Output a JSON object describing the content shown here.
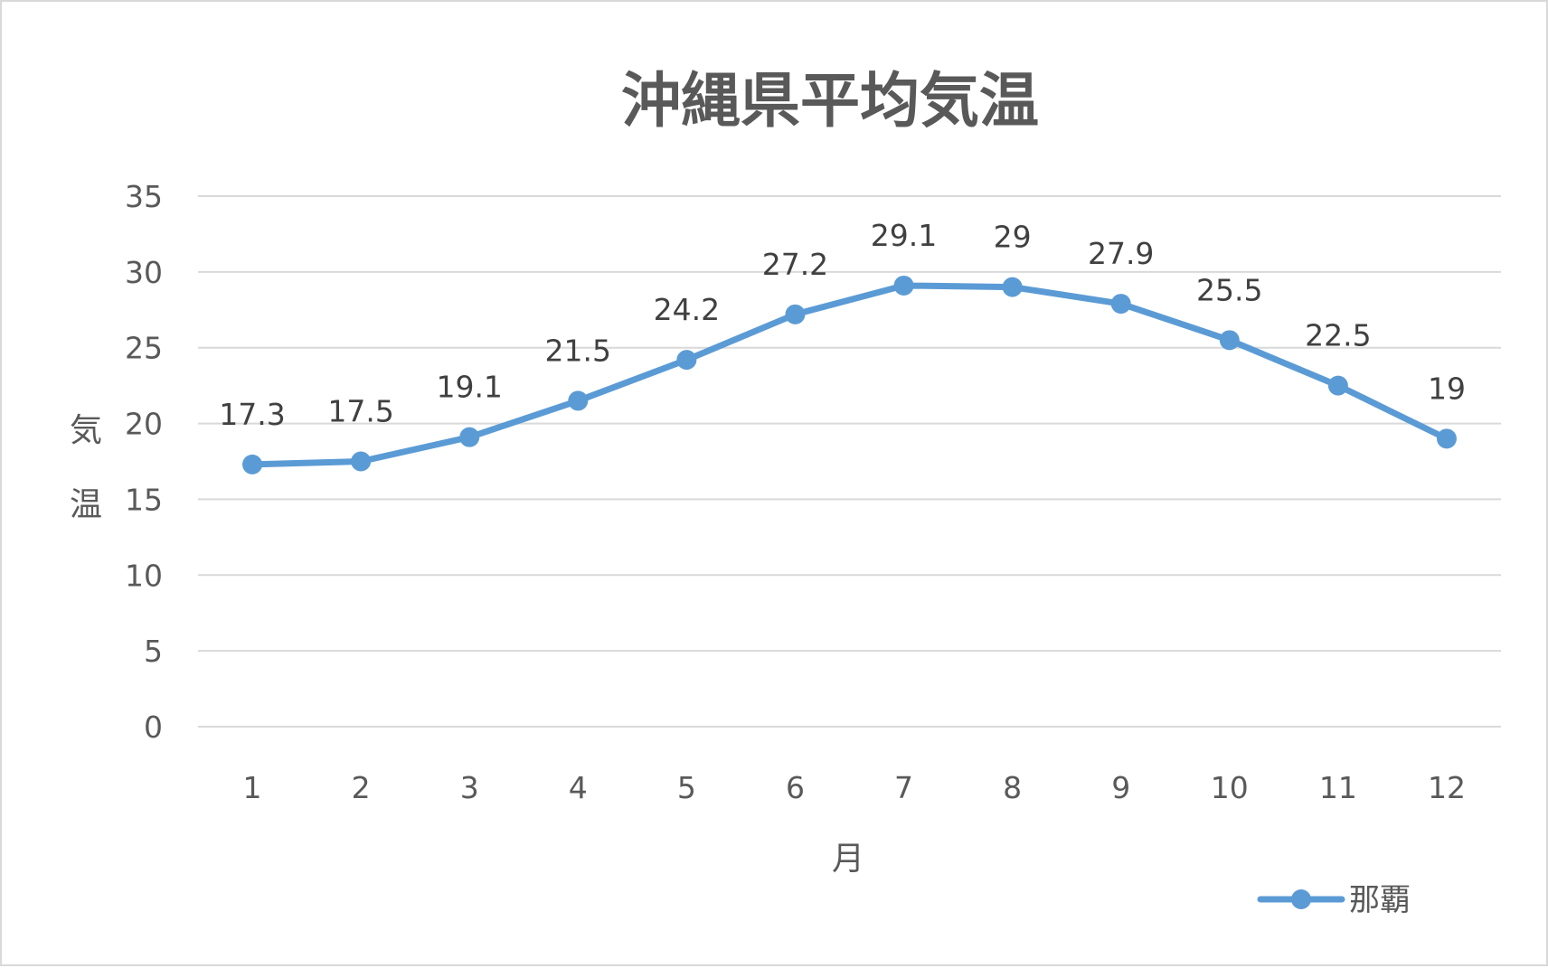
{
  "chart_data": {
    "type": "line",
    "title": "沖縄県平均気温",
    "xlabel": "月",
    "ylabel": "気温",
    "categories": [
      "1",
      "2",
      "3",
      "4",
      "5",
      "6",
      "7",
      "8",
      "9",
      "10",
      "11",
      "12"
    ],
    "series": [
      {
        "name": "那覇",
        "values": [
          17.3,
          17.5,
          19.1,
          21.5,
          24.2,
          27.2,
          29.1,
          29,
          27.9,
          25.5,
          22.5,
          19
        ],
        "labels": [
          "17.3",
          "17.5",
          "19.1",
          "21.5",
          "24.2",
          "27.2",
          "29.1",
          "29",
          "27.9",
          "25.5",
          "22.5",
          "19"
        ],
        "color": "#5b9bd5"
      }
    ],
    "ylim": [
      0,
      35
    ],
    "yticks": [
      "0",
      "5",
      "10",
      "15",
      "20",
      "25",
      "30",
      "35"
    ],
    "grid": true,
    "legend_position": "bottom-right",
    "marker": "circle"
  }
}
